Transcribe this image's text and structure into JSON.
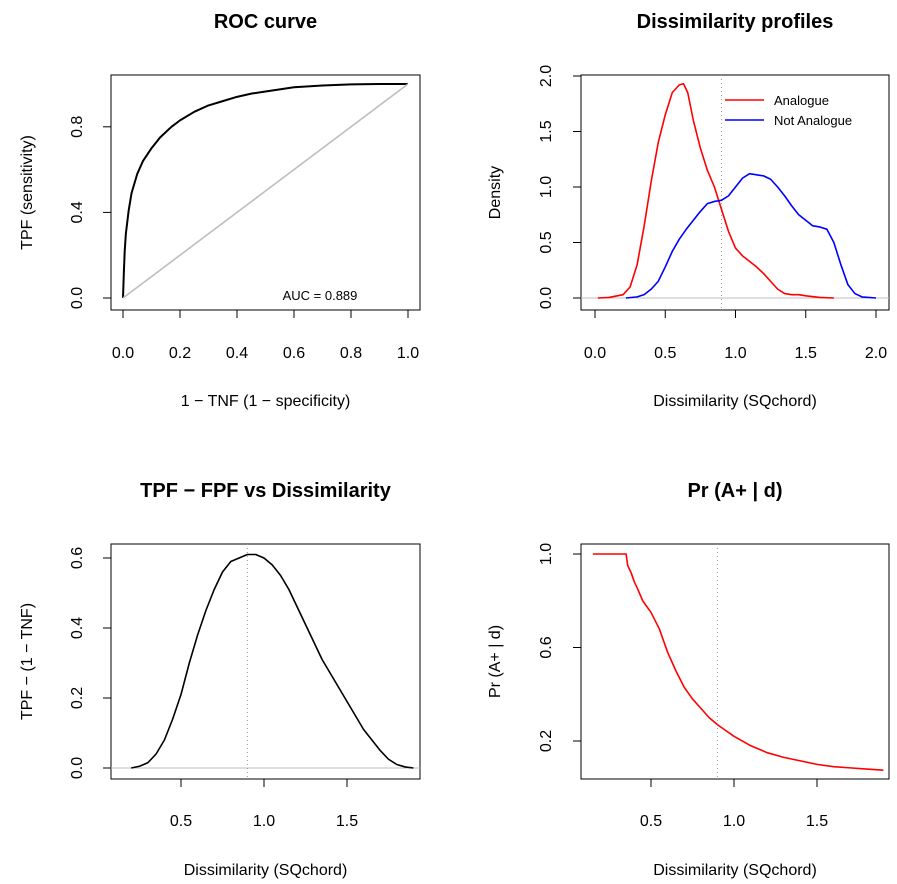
{
  "chart_data": [
    {
      "type": "line",
      "title": "ROC curve",
      "xlabel": "1 − TNF (1 − specificity)",
      "ylabel": "TPF (sensitivity)",
      "xlim": [
        0,
        1
      ],
      "ylim": [
        0,
        1
      ],
      "xticks": [
        "0.0",
        "0.2",
        "0.4",
        "0.6",
        "0.8",
        "1.0"
      ],
      "yticks": [
        "0.0",
        "0.4",
        "0.8"
      ],
      "annotation": "AUC = 0.889",
      "series": [
        {
          "color": "#000000",
          "x": [
            0,
            0.003,
            0.006,
            0.01,
            0.02,
            0.03,
            0.05,
            0.07,
            0.1,
            0.13,
            0.17,
            0.2,
            0.25,
            0.3,
            0.35,
            0.4,
            0.45,
            0.5,
            0.55,
            0.6,
            0.7,
            0.8,
            0.9,
            0.95,
            1.0
          ],
          "y": [
            0,
            0.12,
            0.22,
            0.3,
            0.41,
            0.49,
            0.58,
            0.64,
            0.7,
            0.75,
            0.8,
            0.83,
            0.87,
            0.9,
            0.92,
            0.94,
            0.955,
            0.965,
            0.975,
            0.985,
            0.993,
            0.998,
            1.0,
            1.0,
            1.0
          ]
        },
        {
          "color": "#bebebe",
          "x": [
            0,
            1
          ],
          "y": [
            0,
            1
          ]
        }
      ]
    },
    {
      "type": "line",
      "title": "Dissimilarity profiles",
      "xlabel": "Dissimilarity (SQchord)",
      "ylabel": "Density",
      "xlim": [
        0,
        2
      ],
      "ylim": [
        0,
        2
      ],
      "xticks": [
        "0.0",
        "0.5",
        "1.0",
        "1.5",
        "2.0"
      ],
      "yticks": [
        "0.0",
        "0.5",
        "1.0",
        "1.5",
        "2.0"
      ],
      "vline": 0.9,
      "legend": "top-right",
      "series": [
        {
          "name": "Analogue",
          "color": "#ff0000",
          "x": [
            0.02,
            0.1,
            0.2,
            0.25,
            0.3,
            0.35,
            0.4,
            0.45,
            0.5,
            0.55,
            0.6,
            0.63,
            0.66,
            0.7,
            0.75,
            0.8,
            0.85,
            0.9,
            0.95,
            1.0,
            1.05,
            1.1,
            1.15,
            1.2,
            1.25,
            1.3,
            1.35,
            1.4,
            1.45,
            1.5,
            1.6,
            1.7
          ],
          "y": [
            0.0,
            0.005,
            0.03,
            0.1,
            0.3,
            0.65,
            1.05,
            1.4,
            1.65,
            1.85,
            1.92,
            1.93,
            1.85,
            1.6,
            1.35,
            1.15,
            1.0,
            0.8,
            0.6,
            0.45,
            0.38,
            0.33,
            0.28,
            0.22,
            0.15,
            0.08,
            0.04,
            0.03,
            0.03,
            0.02,
            0.005,
            0.0
          ]
        },
        {
          "name": "Not Analogue",
          "color": "#0000ff",
          "x": [
            0.22,
            0.3,
            0.35,
            0.4,
            0.45,
            0.5,
            0.55,
            0.6,
            0.65,
            0.7,
            0.75,
            0.8,
            0.85,
            0.9,
            0.95,
            1.0,
            1.05,
            1.1,
            1.15,
            1.2,
            1.25,
            1.3,
            1.35,
            1.4,
            1.45,
            1.5,
            1.55,
            1.6,
            1.65,
            1.7,
            1.75,
            1.8,
            1.85,
            1.9,
            2.0
          ],
          "y": [
            0.0,
            0.01,
            0.03,
            0.08,
            0.15,
            0.28,
            0.42,
            0.53,
            0.62,
            0.7,
            0.78,
            0.85,
            0.87,
            0.88,
            0.92,
            1.0,
            1.08,
            1.12,
            1.11,
            1.1,
            1.07,
            1.0,
            0.92,
            0.83,
            0.75,
            0.7,
            0.65,
            0.64,
            0.62,
            0.5,
            0.3,
            0.12,
            0.04,
            0.01,
            0.0
          ]
        }
      ]
    },
    {
      "type": "line",
      "title": "TPF − FPF vs Dissimilarity",
      "xlabel": "Dissimilarity (SQchord)",
      "ylabel": "TPF − (1 − TNF)",
      "xlim": [
        0.2,
        1.95
      ],
      "ylim": [
        0,
        0.62
      ],
      "xticks": [
        "0.5",
        "1.0",
        "1.5"
      ],
      "yticks": [
        "0.0",
        "0.2",
        "0.4",
        "0.6"
      ],
      "vline": 0.9,
      "series": [
        {
          "color": "#000000",
          "x": [
            0.2,
            0.25,
            0.3,
            0.35,
            0.4,
            0.45,
            0.5,
            0.55,
            0.6,
            0.65,
            0.7,
            0.75,
            0.8,
            0.85,
            0.9,
            0.95,
            1.0,
            1.05,
            1.1,
            1.15,
            1.2,
            1.25,
            1.3,
            1.35,
            1.4,
            1.45,
            1.5,
            1.55,
            1.6,
            1.65,
            1.7,
            1.75,
            1.8,
            1.85,
            1.9
          ],
          "y": [
            0.0,
            0.005,
            0.015,
            0.04,
            0.08,
            0.14,
            0.21,
            0.3,
            0.38,
            0.45,
            0.51,
            0.56,
            0.59,
            0.6,
            0.61,
            0.61,
            0.6,
            0.58,
            0.55,
            0.51,
            0.46,
            0.41,
            0.36,
            0.31,
            0.27,
            0.23,
            0.19,
            0.15,
            0.11,
            0.08,
            0.05,
            0.025,
            0.01,
            0.003,
            0.0
          ]
        }
      ]
    },
    {
      "type": "line",
      "title": "Pr (A+ | d)",
      "xlabel": "Dissimilarity (SQchord)",
      "ylabel": "Pr (A+ | d)",
      "xlim": [
        0.15,
        1.95
      ],
      "ylim": [
        0.07,
        1.0
      ],
      "xticks": [
        "0.5",
        "1.0",
        "1.5"
      ],
      "yticks": [
        "0.2",
        "0.6",
        "1.0"
      ],
      "vline": 0.9,
      "series": [
        {
          "color": "#ff0000",
          "x": [
            0.15,
            0.2,
            0.25,
            0.3,
            0.35,
            0.36,
            0.38,
            0.4,
            0.42,
            0.45,
            0.5,
            0.55,
            0.6,
            0.65,
            0.7,
            0.75,
            0.8,
            0.85,
            0.9,
            0.95,
            1.0,
            1.1,
            1.2,
            1.3,
            1.4,
            1.5,
            1.6,
            1.7,
            1.8,
            1.9
          ],
          "y": [
            1.0,
            1.0,
            1.0,
            1.0,
            1.0,
            0.95,
            0.92,
            0.88,
            0.85,
            0.8,
            0.75,
            0.68,
            0.58,
            0.5,
            0.43,
            0.38,
            0.34,
            0.3,
            0.27,
            0.245,
            0.22,
            0.18,
            0.15,
            0.13,
            0.115,
            0.1,
            0.09,
            0.085,
            0.08,
            0.075
          ]
        }
      ]
    }
  ]
}
